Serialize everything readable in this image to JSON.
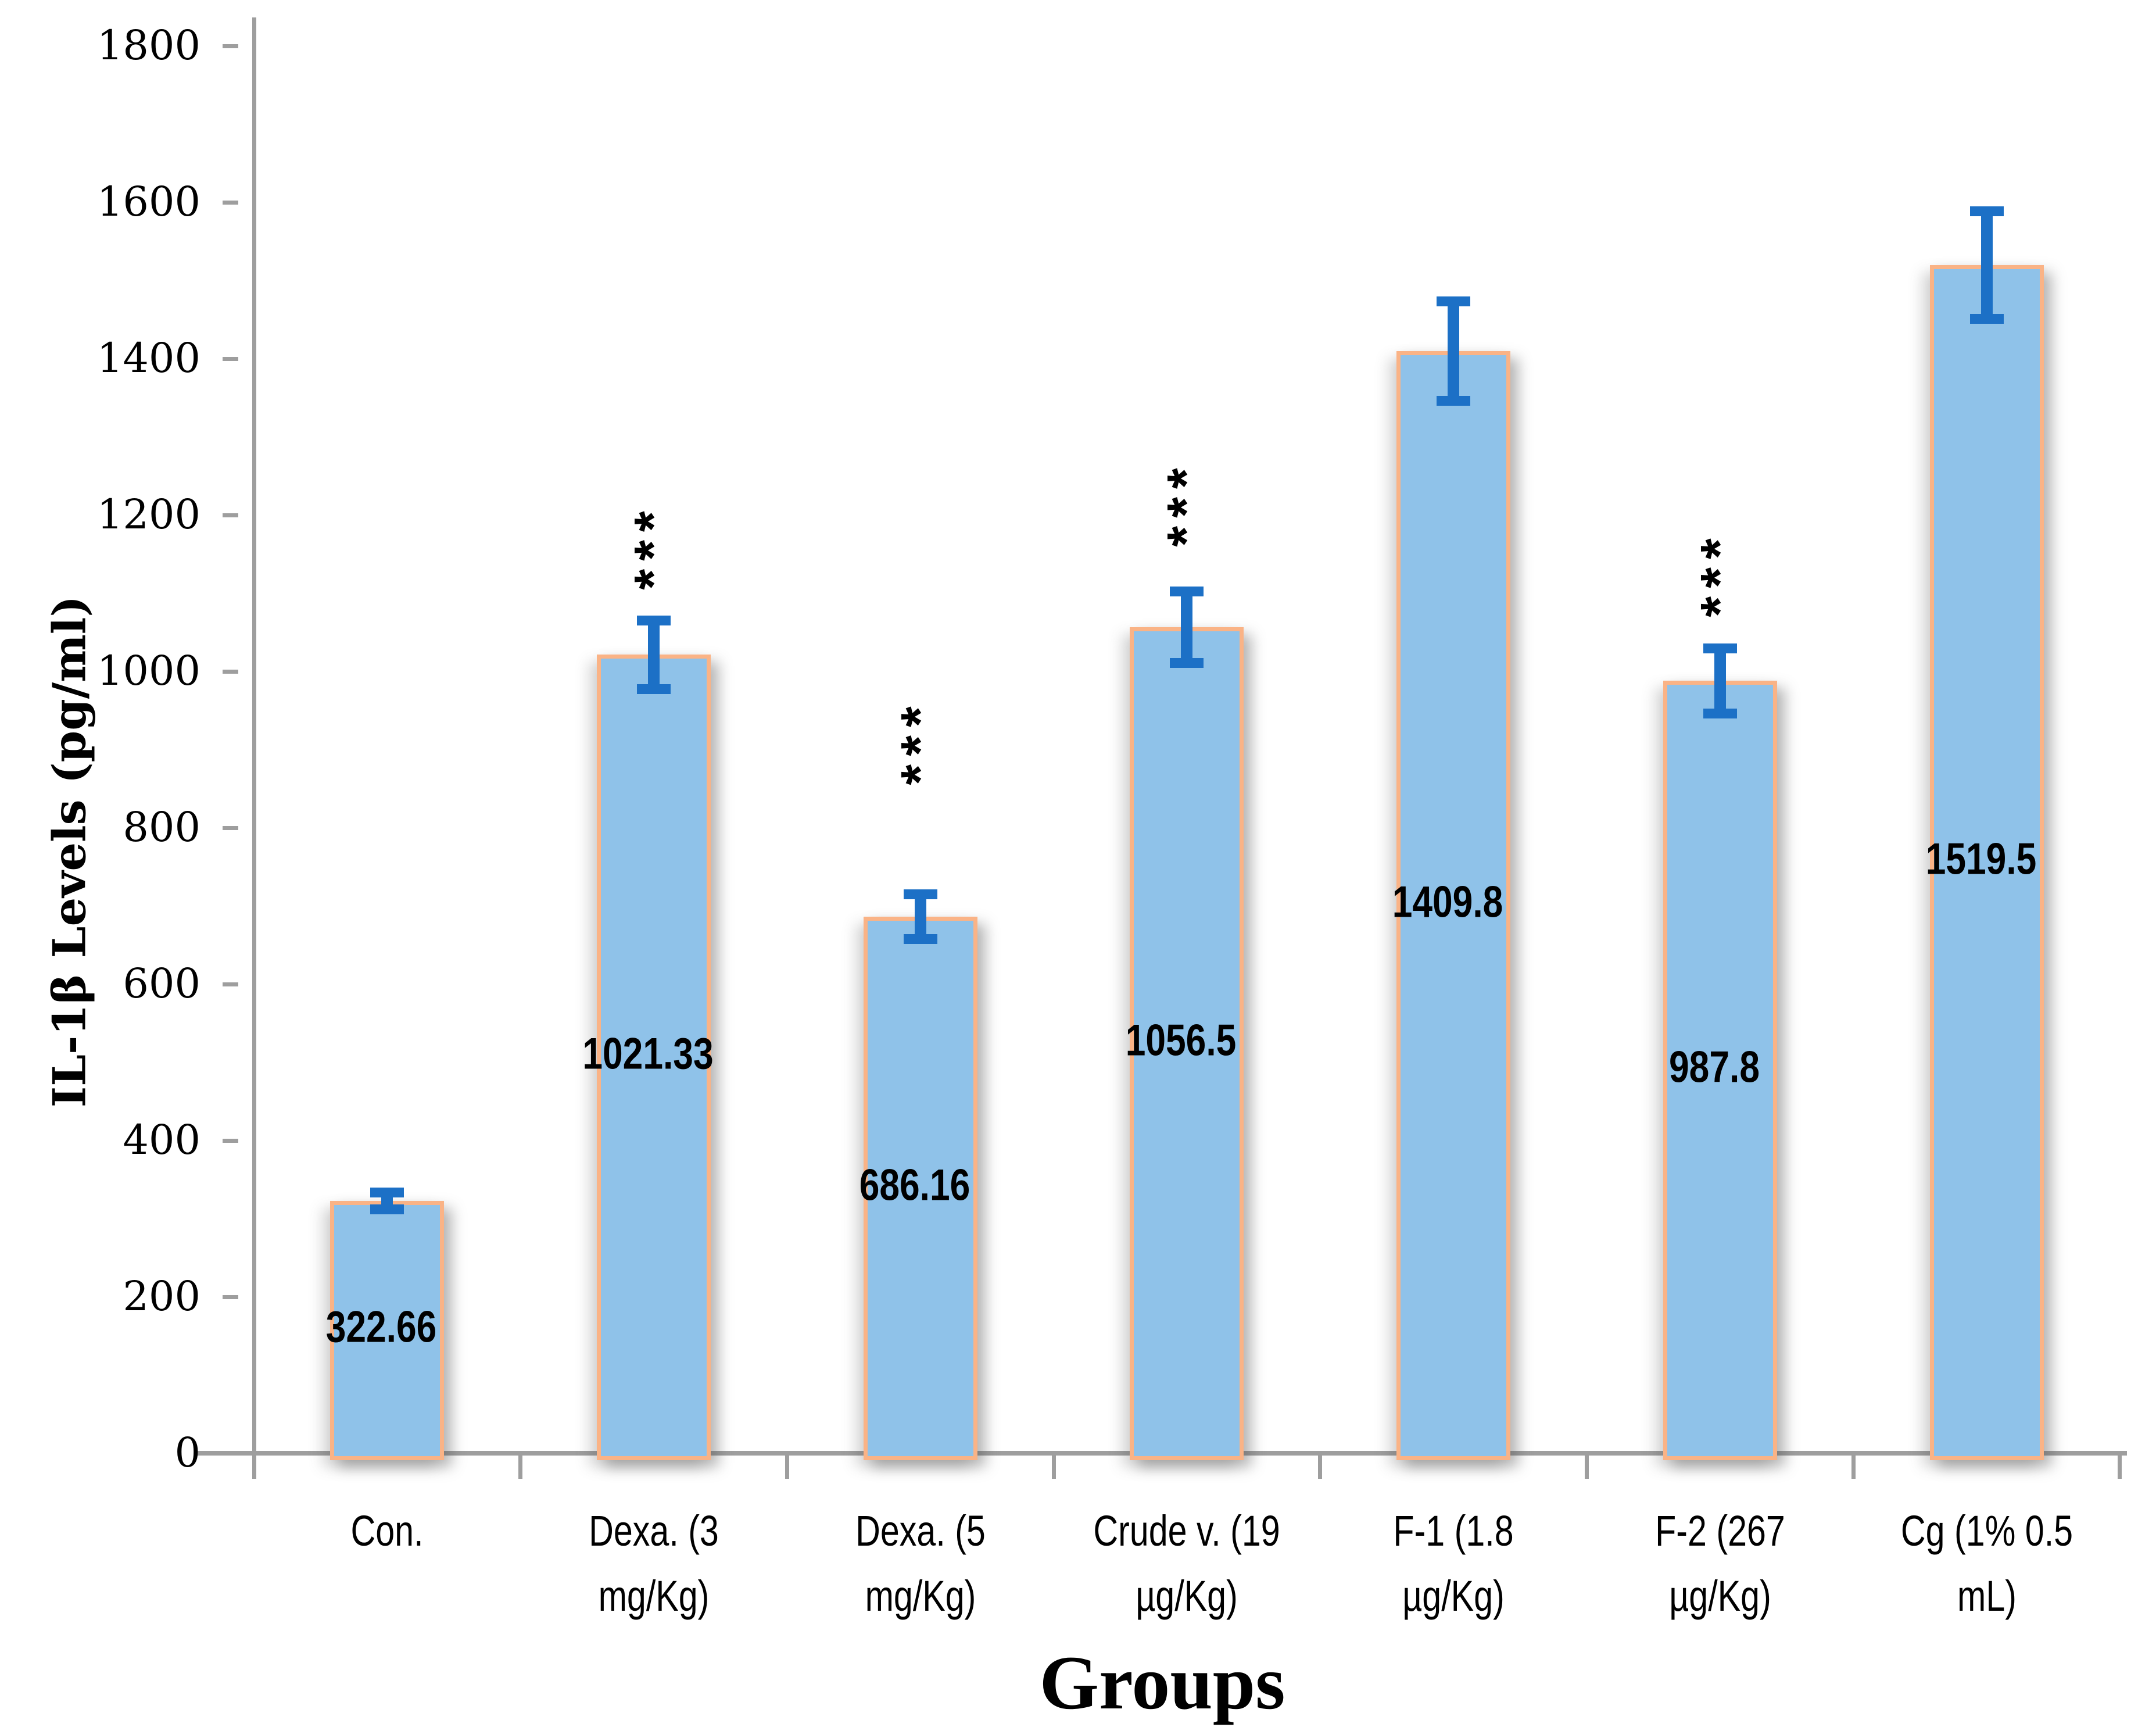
{
  "chart_data": {
    "type": "bar",
    "title": "",
    "xlabel": "Groups",
    "ylabel": "IL-1β Levels (pg/ml)",
    "ylim": [
      0,
      1800
    ],
    "ytick_step": 200,
    "ytick_labels": [
      "0",
      "200",
      "400",
      "600",
      "800",
      "1000",
      "1200",
      "1400",
      "1600",
      "1800"
    ],
    "grid": "off",
    "legend": "none",
    "categories": [
      "Con.",
      "Dexa. (3 mg/Kg)",
      "Dexa. (5 mg/Kg)",
      "Crude v. (19 µg/Kg)",
      "F-1 (1.8 µg/Kg)",
      "F-2 (267 µg/Kg)",
      "Cg (1% 0.5 mL)"
    ],
    "category_lines": [
      [
        "Con."
      ],
      [
        "Dexa. (3",
        "mg/Kg)"
      ],
      [
        "Dexa. (5",
        "mg/Kg)"
      ],
      [
        "Crude v. (19",
        "µg/Kg)"
      ],
      [
        "F-1 (1.8",
        "µg/Kg)"
      ],
      [
        "F-2 (267",
        "µg/Kg)"
      ],
      [
        "Cg (1% 0.5",
        "mL)"
      ]
    ],
    "values": [
      322.66,
      1021.33,
      686.16,
      1056.5,
      1409.8,
      987.8,
      1519.5
    ],
    "value_labels": [
      "322.66",
      "1021.33",
      "686.16",
      "1056.5",
      "1409.8",
      "987.8",
      "1519.5"
    ],
    "errors": [
      17,
      50,
      35,
      52,
      70,
      48,
      75
    ],
    "significance": [
      "",
      "***",
      "***",
      "***",
      "",
      "***",
      ""
    ],
    "sig_center_value": [
      null,
      1160,
      910,
      1215,
      null,
      1125,
      null
    ],
    "colors": {
      "bar_fill": "#8FC2E9",
      "bar_border": "#FAB386",
      "error_bar": "#1C70C6",
      "axis": "#9E9E9E",
      "label_text": "#000000"
    }
  }
}
